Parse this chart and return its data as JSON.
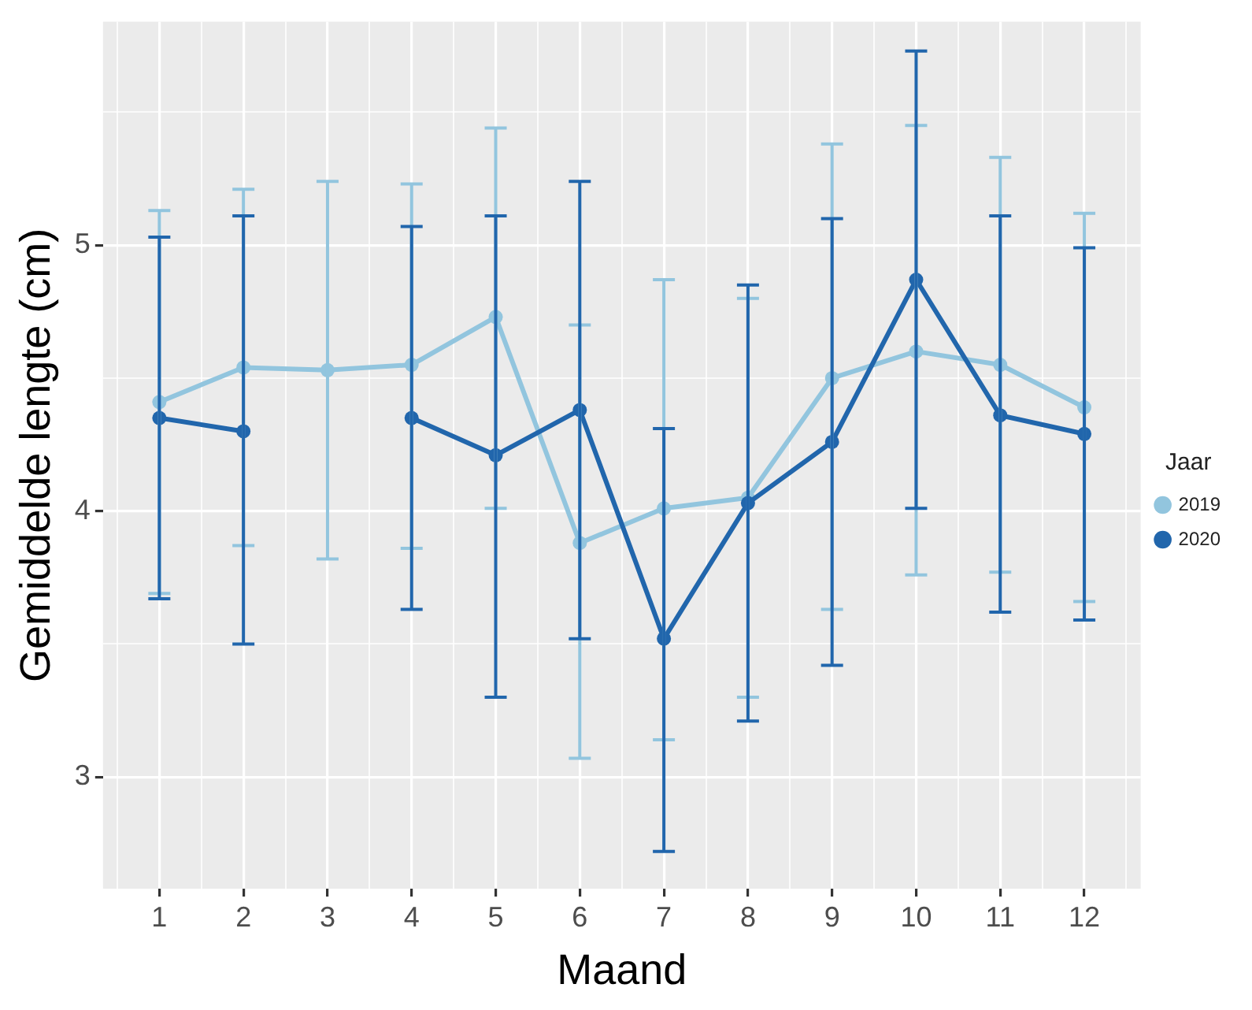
{
  "chart_data": {
    "type": "line",
    "xlabel": "Maand",
    "ylabel": "Gemiddelde lengte (cm)",
    "legend_title": "Jaar",
    "legend": "right",
    "grid": true,
    "marker": "circle",
    "line_style": "solid",
    "x": [
      1,
      2,
      3,
      4,
      5,
      6,
      7,
      8,
      9,
      10,
      11,
      12
    ],
    "xlim": [
      0.33,
      12.67
    ],
    "xticks": [
      {
        "value": 0.5,
        "label": null
      },
      1,
      {
        "value": 1.5,
        "label": null
      },
      2,
      {
        "value": 2.5,
        "label": null
      },
      3,
      {
        "value": 3.5,
        "label": null
      },
      4,
      {
        "value": 4.5,
        "label": null
      },
      5,
      {
        "value": 5.5,
        "label": null
      },
      6,
      {
        "value": 6.5,
        "label": null
      },
      7,
      {
        "value": 7.5,
        "label": null
      },
      8,
      {
        "value": 8.5,
        "label": null
      },
      9,
      {
        "value": 9.5,
        "label": null
      },
      10,
      {
        "value": 10.5,
        "label": null
      },
      11,
      {
        "value": 11.5,
        "label": null
      },
      12,
      {
        "value": 12.5,
        "label": null
      }
    ],
    "ylim": [
      2.58,
      5.84
    ],
    "yticks": [
      3,
      {
        "value": 3.5,
        "label": null
      },
      4,
      {
        "value": 4.5,
        "label": null
      },
      5,
      {
        "value": 5.5,
        "label": null
      }
    ],
    "series": [
      {
        "name": "2019",
        "color": "#92c5de",
        "values": [
          4.41,
          4.54,
          4.53,
          4.55,
          4.73,
          3.88,
          4.01,
          4.05,
          4.5,
          4.6,
          4.55,
          4.39
        ],
        "errors": [
          [
            3.69,
            5.13
          ],
          [
            3.87,
            5.21
          ],
          [
            3.82,
            5.24
          ],
          [
            3.86,
            5.23
          ],
          [
            4.01,
            5.44
          ],
          [
            3.07,
            4.7
          ],
          [
            3.14,
            4.87
          ],
          [
            3.3,
            4.8
          ],
          [
            3.63,
            5.38
          ],
          [
            3.76,
            5.45
          ],
          [
            3.77,
            5.33
          ],
          [
            3.66,
            5.12
          ]
        ]
      },
      {
        "name": "2020",
        "color": "#2166ac",
        "values": [
          4.35,
          4.3,
          null,
          4.35,
          4.21,
          4.38,
          3.52,
          4.03,
          4.26,
          4.87,
          4.36,
          4.29
        ],
        "errors": [
          [
            3.67,
            5.03
          ],
          [
            3.5,
            5.11
          ],
          null,
          [
            3.63,
            5.07
          ],
          [
            3.3,
            5.11
          ],
          [
            3.52,
            5.24
          ],
          [
            2.72,
            4.31
          ],
          [
            3.21,
            4.85
          ],
          [
            3.42,
            5.1
          ],
          [
            4.01,
            5.73
          ],
          [
            3.62,
            5.11
          ],
          [
            3.59,
            4.99
          ]
        ]
      }
    ]
  }
}
